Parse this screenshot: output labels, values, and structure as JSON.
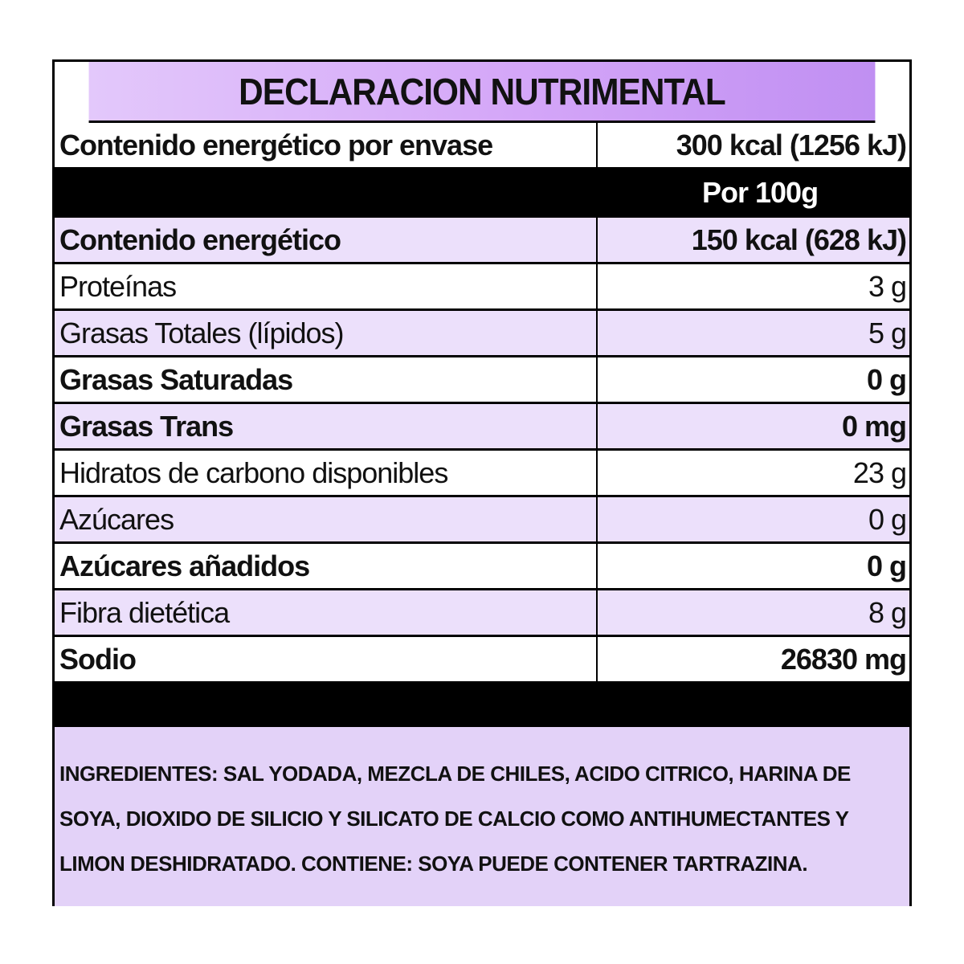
{
  "title": "DECLARACION NUTRIMENTAL",
  "energy_per_package": {
    "label": "Contenido energético por envase",
    "value": "300 kcal (1256 kJ)"
  },
  "per_header": "Por 100g",
  "rows": [
    {
      "label": "Contenido energético",
      "value": "150 kcal (628 kJ)"
    },
    {
      "label": "Proteínas",
      "value": "3 g"
    },
    {
      "label": "Grasas Totales (lípidos)",
      "value": "5 g"
    },
    {
      "label": "Grasas Saturadas",
      "value": "0 g"
    },
    {
      "label": "Grasas Trans",
      "value": "0 mg"
    },
    {
      "label": "Hidratos de carbono disponibles",
      "value": "23 g"
    },
    {
      "label": "Azúcares",
      "value": "0 g"
    },
    {
      "label": "Azúcares añadidos",
      "value": "0 g"
    },
    {
      "label": "Fibra dietética",
      "value": "8 g"
    },
    {
      "label": "Sodio",
      "value": "26830 mg"
    }
  ],
  "ingredients": "INGREDIENTES: SAL YODADA, MEZCLA DE CHILES, ACIDO CITRICO, HARINA DE SOYA, DIOXIDO DE SILICIO Y SILICATO DE CALCIO COMO ANTIHUMECTANTES Y LIMON DESHIDRATADO. CONTIENE: SOYA PUEDE CONTENER TARTRAZINA.",
  "colors": {
    "title_bg": "#d4a6f8",
    "row_purple": "#ece0fb",
    "ingredients_bg": "#e3d2f8",
    "border": "#000000"
  }
}
